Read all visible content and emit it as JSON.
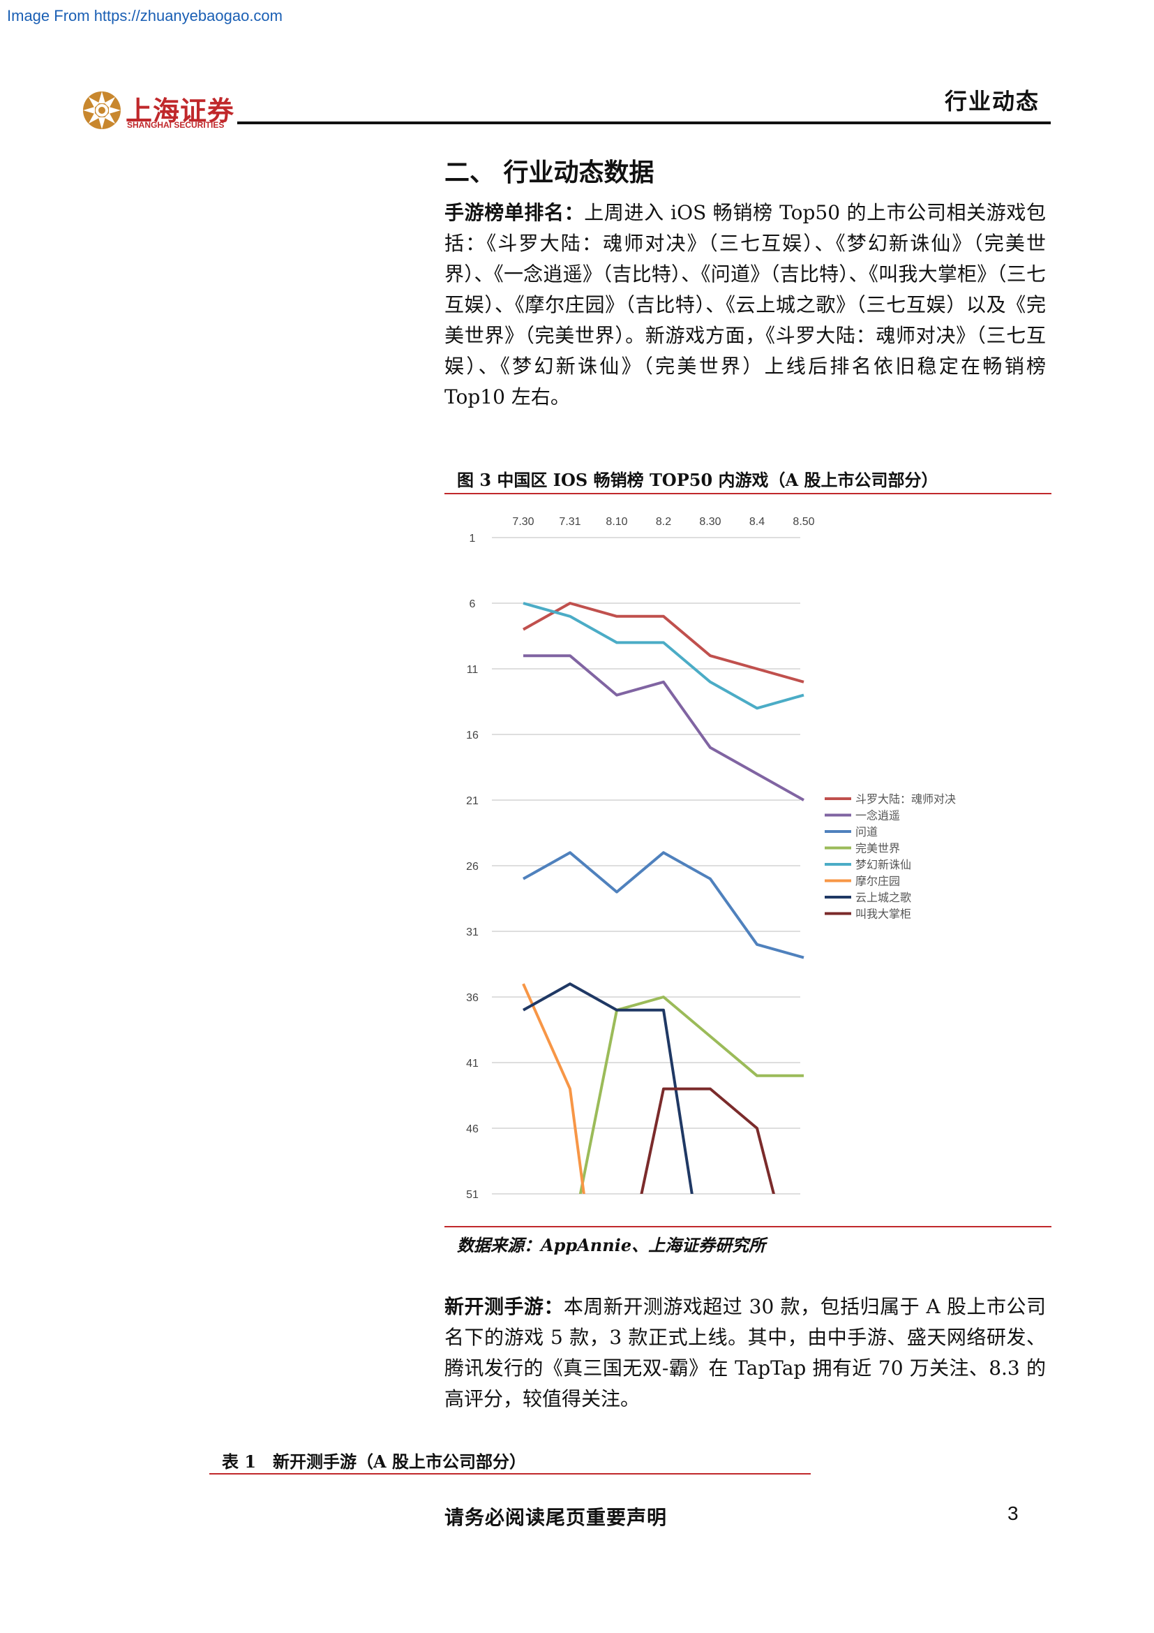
{
  "watermark": "Image From https://zhuanyebaogao.com",
  "header": {
    "logo_cn": "上海证券",
    "logo_en": "SHANGHAI SECURITIES",
    "category": "行业动态"
  },
  "section_title": "二、 行业动态数据",
  "para1": {
    "lead": "手游榜单排名：",
    "text": "上周进入 iOS 畅销榜 Top50 的上市公司相关游戏包括：《斗罗大陆：魂师对决》（三七互娱）、《梦幻新诛仙》（完美世界）、《一念逍遥》（吉比特）、《问道》（吉比特）、《叫我大掌柜》（三七互娱）、《摩尔庄园》（吉比特）、《云上城之歌》（三七互娱）以及《完美世界》（完美世界）。新游戏方面，《斗罗大陆：魂师对决》（三七互娱）、《梦幻新诛仙》（完美世界）上线后排名依旧稳定在畅销榜 Top10 左右。"
  },
  "figure_caption": "图 3 中国区 IOS 畅销榜 TOP50 内游戏（A 股上市公司部分）",
  "chart_data": {
    "type": "line",
    "categories": [
      "7.30",
      "7.31",
      "8.10",
      "8.2",
      "8.30",
      "8.4",
      "8.50"
    ],
    "y_ticks": [
      1,
      6,
      11,
      16,
      21,
      26,
      31,
      36,
      41,
      46,
      51
    ],
    "ylim": [
      1,
      51
    ],
    "y_inverted": true,
    "grid": true,
    "legend_position": "right",
    "series": [
      {
        "name": "斗罗大陆：魂师对决",
        "color": "#c0504d",
        "values": [
          8,
          6,
          7,
          7,
          10,
          11,
          12
        ]
      },
      {
        "name": "一念逍遥",
        "color": "#8064a2",
        "values": [
          10,
          10,
          13,
          12,
          17,
          19,
          21
        ]
      },
      {
        "name": "问道",
        "color": "#4f81bd",
        "values": [
          27,
          25,
          28,
          25,
          27,
          32,
          33
        ]
      },
      {
        "name": "完美世界",
        "color": "#9bbb59",
        "values": [
          null,
          55,
          37,
          36,
          39,
          42,
          42
        ]
      },
      {
        "name": "梦幻新诛仙",
        "color": "#4bacc6",
        "values": [
          6,
          7,
          9,
          9,
          12,
          14,
          13
        ]
      },
      {
        "name": "摩尔庄园",
        "color": "#f79646",
        "values": [
          35,
          43,
          70,
          null,
          null,
          null,
          null
        ]
      },
      {
        "name": "云上城之歌",
        "color": "#1f3864",
        "values": [
          37,
          35,
          37,
          37,
          60,
          null,
          null
        ]
      },
      {
        "name": "叫我大掌柜",
        "color": "#7b2b2b",
        "values": [
          null,
          null,
          60,
          43,
          43,
          46,
          60
        ]
      }
    ]
  },
  "source": "数据来源：AppAnnie、上海证券研究所",
  "para2": {
    "lead": "新开测手游：",
    "text": "本周新开测游戏超过 30 款，包括归属于 A 股上市公司名下的游戏 5 款，3 款正式上线。其中，由中手游、盛天网络研发、腾讯发行的《真三国无双-霸》在 TapTap 拥有近 70 万关注、8.3 的高评分，较值得关注。"
  },
  "table_caption": "表 1　新开测手游（A 股上市公司部分）",
  "footer": {
    "notice": "请务必阅读尾页重要声明",
    "page": "3"
  },
  "colors": {
    "brand_red": "#c0282b",
    "logo_gold": "#c8872e"
  }
}
